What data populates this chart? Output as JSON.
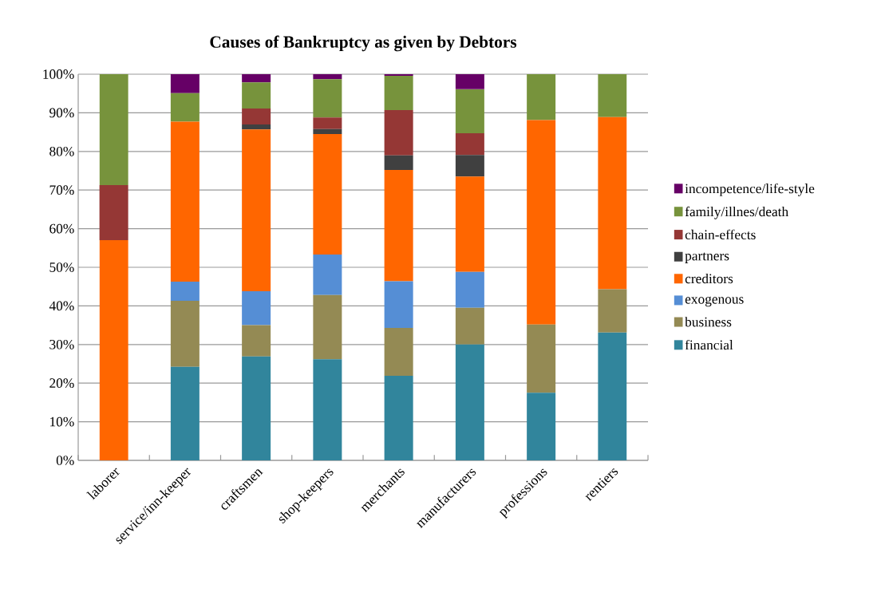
{
  "chart_data": {
    "type": "bar",
    "stacked": true,
    "title": "Causes of Bankruptcy as given by Debtors",
    "categories": [
      "laborer",
      "service/inn-keeper",
      "craftsmen",
      "shop-keepers",
      "merchants",
      "manufacturers",
      "professions",
      "rentiers"
    ],
    "series": [
      {
        "name": "financial",
        "color": "#31859c",
        "values": [
          0,
          24.2,
          26.9,
          26.2,
          21.9,
          30.0,
          17.5,
          33.1
        ]
      },
      {
        "name": "business",
        "color": "#948a54",
        "values": [
          0,
          17.1,
          8.1,
          16.6,
          12.4,
          9.5,
          17.7,
          11.2
        ]
      },
      {
        "name": "exogenous",
        "color": "#558ed5",
        "values": [
          0,
          5.0,
          8.8,
          10.5,
          12.1,
          9.3,
          0,
          0
        ]
      },
      {
        "name": "creditors",
        "color": "#ff6600",
        "values": [
          57.0,
          41.4,
          41.9,
          31.2,
          28.8,
          24.7,
          52.9,
          44.6
        ]
      },
      {
        "name": "partners",
        "color": "#404040",
        "values": [
          0,
          0,
          1.3,
          1.3,
          3.8,
          5.6,
          0,
          0
        ]
      },
      {
        "name": "chain-effects",
        "color": "#953735",
        "values": [
          14.3,
          0,
          4.1,
          3.0,
          11.7,
          5.6,
          0,
          0
        ]
      },
      {
        "name": "family/illnes/death",
        "color": "#77933c",
        "values": [
          28.7,
          7.4,
          6.8,
          9.9,
          8.9,
          11.4,
          11.9,
          11.1
        ]
      },
      {
        "name": "incompetence/life-style",
        "color": "#660066",
        "values": [
          0,
          4.9,
          2.1,
          1.3,
          0.4,
          3.9,
          0,
          0
        ]
      }
    ],
    "ylim": [
      0,
      100
    ],
    "yticks": [
      {
        "value": 0,
        "label": "0%"
      },
      {
        "value": 10,
        "label": "10%"
      },
      {
        "value": 20,
        "label": "20%"
      },
      {
        "value": 30,
        "label": "30%"
      },
      {
        "value": 40,
        "label": "40%"
      },
      {
        "value": 50,
        "label": "50%"
      },
      {
        "value": 60,
        "label": "60%"
      },
      {
        "value": 70,
        "label": "70%"
      },
      {
        "value": 80,
        "label": "80%"
      },
      {
        "value": 90,
        "label": "90%"
      },
      {
        "value": 100,
        "label": "100%"
      }
    ],
    "grid": "y",
    "legend": "right"
  }
}
